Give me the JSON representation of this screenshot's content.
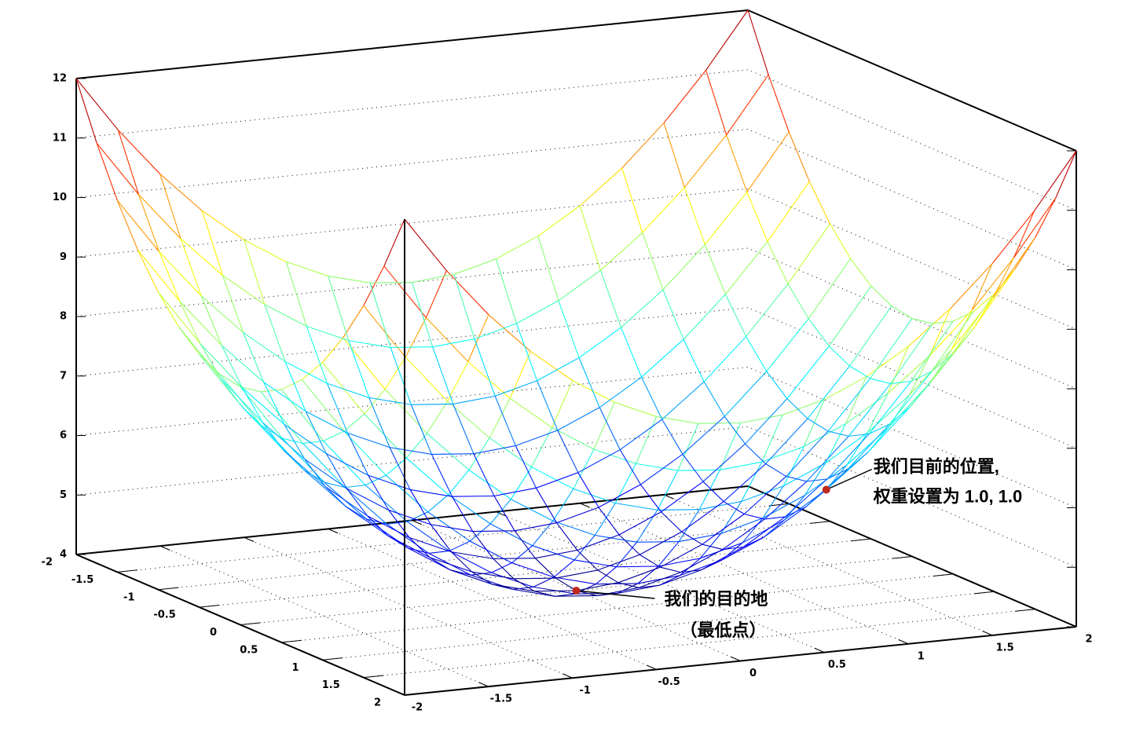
{
  "chart_data": {
    "type": "surface",
    "colormap": "jet",
    "x": [
      -2,
      -1.75,
      -1.5,
      -1.25,
      -1,
      -0.75,
      -0.5,
      -0.25,
      0,
      0.25,
      0.5,
      0.75,
      1,
      1.25,
      1.5,
      1.75,
      2
    ],
    "y": [
      -2,
      -1.75,
      -1.5,
      -1.25,
      -1,
      -0.75,
      -0.5,
      -0.25,
      0,
      0.25,
      0.5,
      0.75,
      1,
      1.25,
      1.5,
      1.75,
      2
    ],
    "z": [
      [
        12,
        11.0625,
        10.25,
        9.5625,
        9,
        8.5625,
        8.25,
        8.0625,
        8,
        8.0625,
        8.25,
        8.5625,
        9,
        9.5625,
        10.25,
        11.0625,
        12
      ],
      [
        11.0625,
        10.125,
        9.3125,
        8.625,
        8.0625,
        7.625,
        7.3125,
        7.125,
        7.0625,
        7.125,
        7.3125,
        7.625,
        8.0625,
        8.625,
        9.3125,
        10.125,
        11.0625
      ],
      [
        10.25,
        9.3125,
        8.5,
        7.8125,
        7.25,
        6.8125,
        6.5,
        6.3125,
        6.25,
        6.3125,
        6.5,
        6.8125,
        7.25,
        7.8125,
        8.5,
        9.3125,
        10.25
      ],
      [
        9.5625,
        8.625,
        7.8125,
        7.125,
        6.5625,
        6.125,
        5.8125,
        5.625,
        5.5625,
        5.625,
        5.8125,
        6.125,
        6.5625,
        7.125,
        7.8125,
        8.625,
        9.5625
      ],
      [
        9,
        8.0625,
        7.25,
        6.5625,
        6,
        5.5625,
        5.25,
        5.0625,
        5,
        5.0625,
        5.25,
        5.5625,
        6,
        6.5625,
        7.25,
        8.0625,
        9
      ],
      [
        8.5625,
        7.625,
        6.8125,
        6.125,
        5.5625,
        5.125,
        4.8125,
        4.625,
        4.5625,
        4.625,
        4.8125,
        5.125,
        5.5625,
        6.125,
        6.8125,
        7.625,
        8.5625
      ],
      [
        8.25,
        7.3125,
        6.5,
        5.8125,
        5.25,
        4.8125,
        4.5,
        4.3125,
        4.25,
        4.3125,
        4.5,
        4.8125,
        5.25,
        5.8125,
        6.5,
        7.3125,
        8.25
      ],
      [
        8.0625,
        7.125,
        6.3125,
        5.625,
        5.0625,
        4.625,
        4.3125,
        4.125,
        4.0625,
        4.125,
        4.3125,
        4.625,
        5.0625,
        5.625,
        6.3125,
        7.125,
        8.0625
      ],
      [
        8,
        7.0625,
        6.25,
        5.5625,
        5,
        4.5625,
        4.25,
        4.0625,
        4,
        4.0625,
        4.25,
        4.5625,
        5,
        5.5625,
        6.25,
        7.0625,
        8
      ],
      [
        8.0625,
        7.125,
        6.3125,
        5.625,
        5.0625,
        4.625,
        4.3125,
        4.125,
        4.0625,
        4.125,
        4.3125,
        4.625,
        5.0625,
        5.625,
        6.3125,
        7.125,
        8.0625
      ],
      [
        8.25,
        7.3125,
        6.5,
        5.8125,
        5.25,
        4.8125,
        4.5,
        4.3125,
        4.25,
        4.3125,
        4.5,
        4.8125,
        5.25,
        5.8125,
        6.5,
        7.3125,
        8.25
      ],
      [
        8.5625,
        7.625,
        6.8125,
        6.125,
        5.5625,
        5.125,
        4.8125,
        4.625,
        4.5625,
        4.625,
        4.8125,
        5.125,
        5.5625,
        6.125,
        6.8125,
        7.625,
        8.5625
      ],
      [
        9,
        8.0625,
        7.25,
        6.5625,
        6,
        5.5625,
        5.25,
        5.0625,
        5,
        5.0625,
        5.25,
        5.5625,
        6,
        6.5625,
        7.25,
        8.0625,
        9
      ],
      [
        9.5625,
        8.625,
        7.8125,
        7.125,
        6.5625,
        6.125,
        5.8125,
        5.625,
        5.5625,
        5.625,
        5.8125,
        6.125,
        6.5625,
        7.125,
        7.8125,
        8.625,
        9.5625
      ],
      [
        10.25,
        9.3125,
        8.5,
        7.8125,
        7.25,
        6.8125,
        6.5,
        6.3125,
        6.25,
        6.3125,
        6.5,
        6.8125,
        7.25,
        7.8125,
        8.5,
        9.3125,
        10.25
      ],
      [
        11.0625,
        10.125,
        9.3125,
        8.625,
        8.0625,
        7.625,
        7.3125,
        7.125,
        7.0625,
        7.125,
        7.3125,
        7.625,
        8.0625,
        8.625,
        9.3125,
        10.125,
        11.0625
      ],
      [
        12,
        11.0625,
        10.25,
        9.5625,
        9,
        8.5625,
        8.25,
        8.0625,
        8,
        8.0625,
        8.25,
        8.5625,
        9,
        9.5625,
        10.25,
        11.0625,
        12
      ]
    ],
    "xlim": [
      -2,
      2
    ],
    "ylim": [
      -2,
      2
    ],
    "zlim": [
      4,
      12
    ],
    "xticks": [
      -2,
      -1.5,
      -1,
      -0.5,
      0,
      0.5,
      1,
      1.5,
      2
    ],
    "yticks": [
      -2,
      -1.5,
      -1,
      -0.5,
      0,
      0.5,
      1,
      1.5,
      2
    ],
    "zticks": [
      4,
      5,
      6,
      7,
      8,
      9,
      10,
      11,
      12
    ],
    "grid": true,
    "annotations": [
      {
        "text": [
          "我们目前的位置,",
          "权重设置为 1.0, 1.0"
        ],
        "x": 1,
        "y": 1,
        "z": 6,
        "color": "#c0281e"
      },
      {
        "text": [
          "我们的目的地",
          "（最低点）"
        ],
        "x": 0,
        "y": 0,
        "z": 4,
        "color": "#c0281e"
      }
    ]
  }
}
